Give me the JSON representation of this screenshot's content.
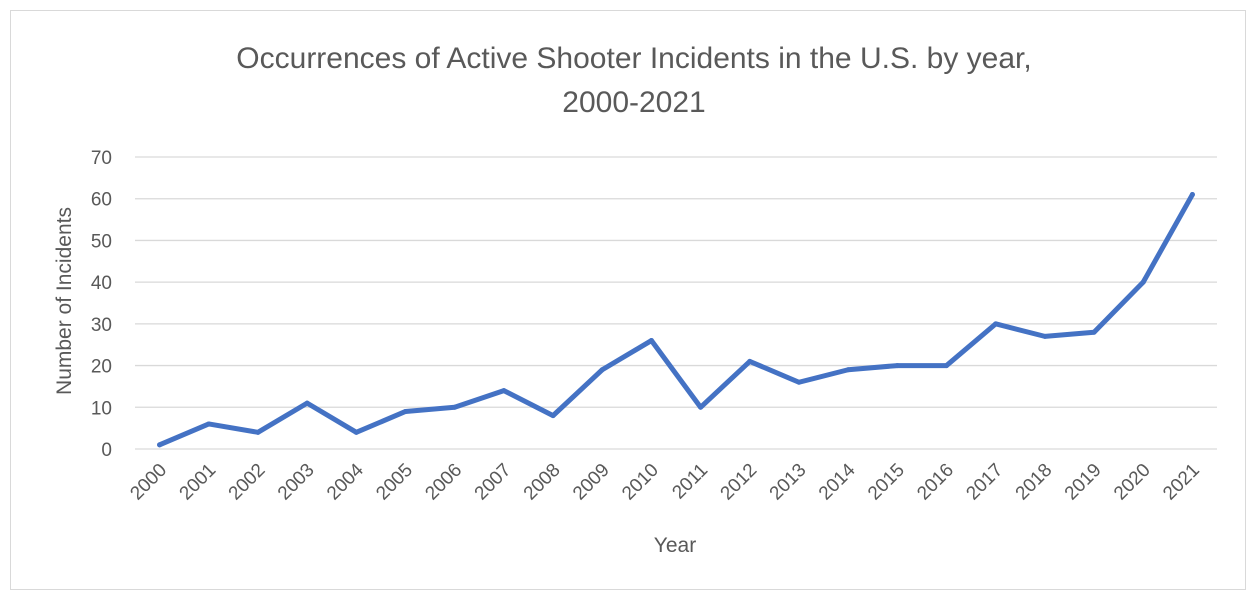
{
  "chart_data": {
    "type": "line",
    "title": "Occurrences of Active Shooter Incidents in the U.S. by year,",
    "subtitle": "2000-2021",
    "xlabel": "Year",
    "ylabel": "Number of Incidents",
    "ylim": [
      0,
      70
    ],
    "yticks": [
      0,
      10,
      20,
      30,
      40,
      50,
      60,
      70
    ],
    "grid": true,
    "categories": [
      "2000",
      "2001",
      "2002",
      "2003",
      "2004",
      "2005",
      "2006",
      "2007",
      "2008",
      "2009",
      "2010",
      "2011",
      "2012",
      "2013",
      "2014",
      "2015",
      "2016",
      "2017",
      "2018",
      "2019",
      "2020",
      "2021"
    ],
    "series": [
      {
        "name": "Incidents",
        "color": "#4472c4",
        "values": [
          1,
          6,
          4,
          11,
          4,
          9,
          10,
          14,
          8,
          19,
          26,
          10,
          21,
          16,
          19,
          20,
          20,
          30,
          27,
          28,
          40,
          61
        ]
      }
    ]
  }
}
